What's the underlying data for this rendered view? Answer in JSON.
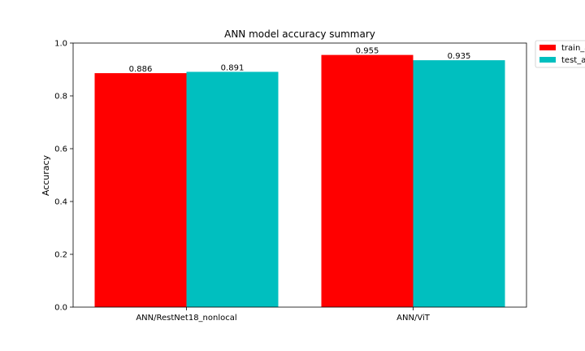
{
  "chart_data": {
    "type": "bar",
    "title": "ANN model accuracy summary",
    "xlabel": "",
    "ylabel": "Accuracy",
    "categories": [
      "ANN/RestNet18_nonlocal",
      "ANN/ViT"
    ],
    "series": [
      {
        "name": "train_a",
        "color": "#ff0000",
        "values": [
          0.886,
          0.955
        ],
        "labels": [
          "0.886",
          "0.955"
        ]
      },
      {
        "name": "test_a",
        "color": "#00bfbf",
        "values": [
          0.891,
          0.935
        ],
        "labels": [
          "0.891",
          "0.935"
        ]
      }
    ],
    "yticks": [
      "0.0",
      "0.2",
      "0.4",
      "0.6",
      "0.8",
      "1.0"
    ],
    "ylim": [
      0,
      1.0
    ],
    "grid": false,
    "legend_position": "outside-top-right"
  }
}
